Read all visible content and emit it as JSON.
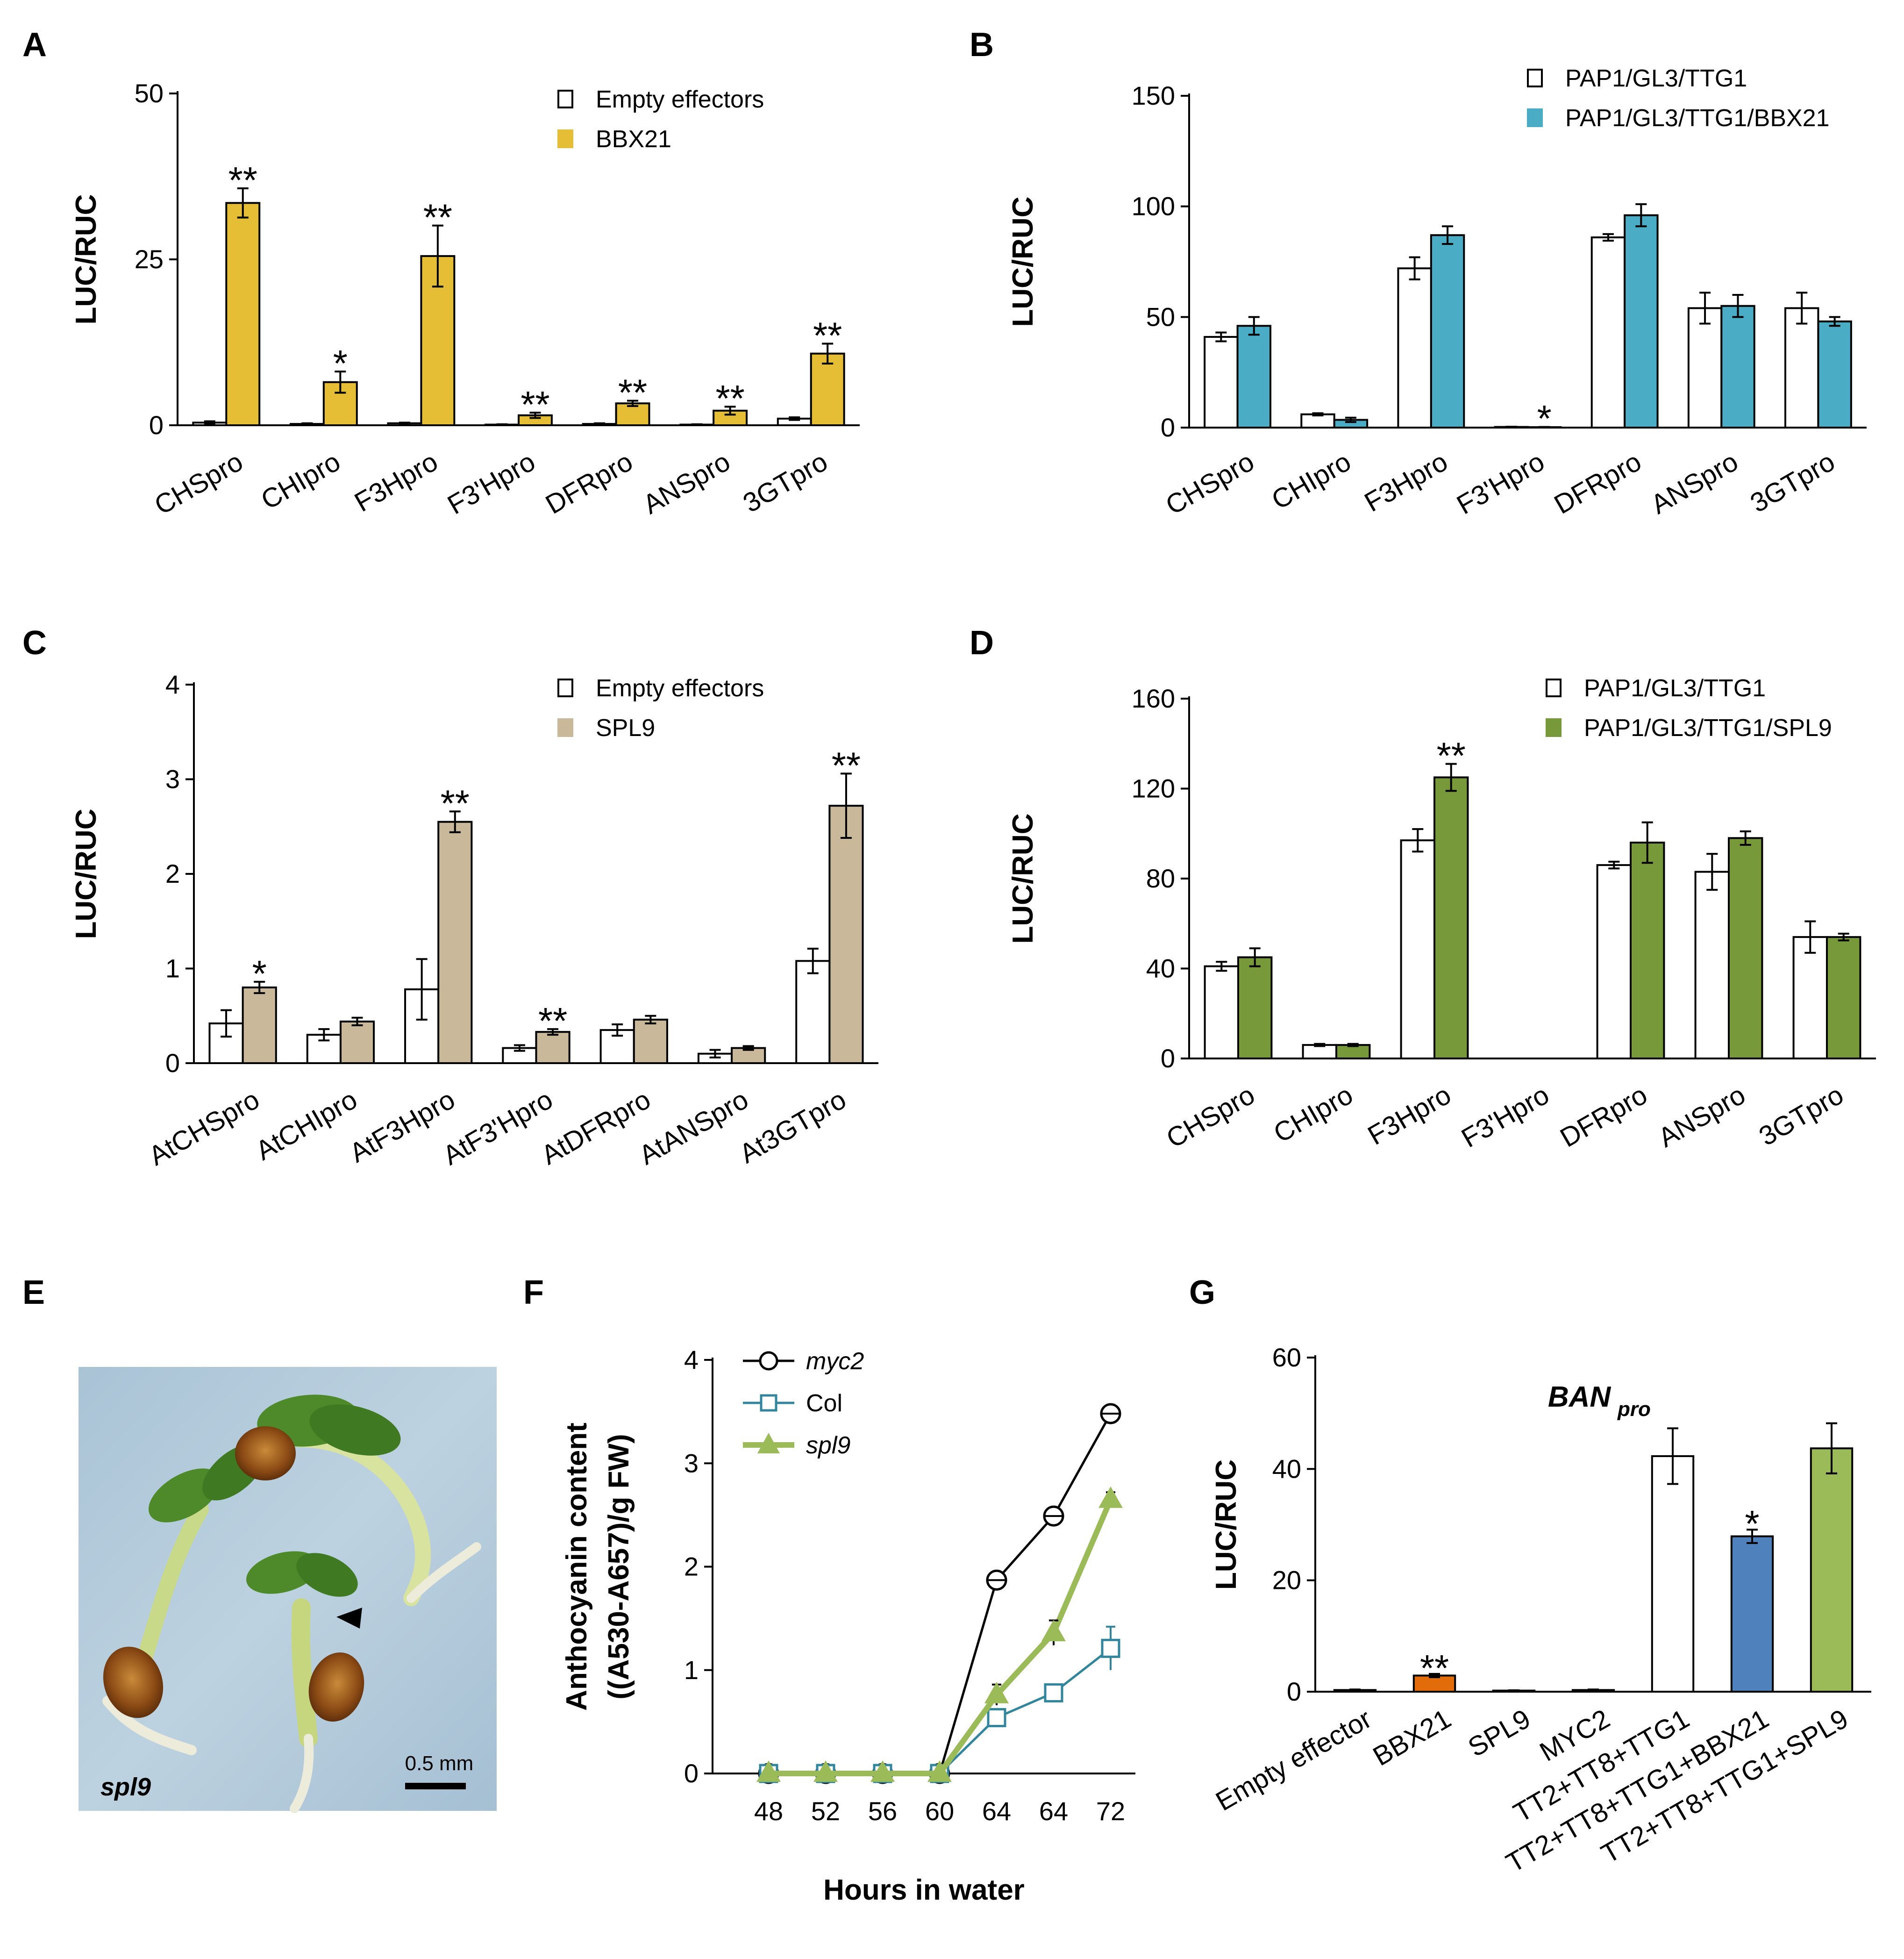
{
  "chart_data": [
    {
      "panel": "A",
      "type": "bar",
      "ylabel": "LUC/RUC",
      "ylim": [
        0,
        50
      ],
      "yticks": [
        0,
        25,
        50
      ],
      "categories": [
        "CHSpro",
        "CHIpro",
        "F3Hpro",
        "F3'Hpro",
        "DFRpro",
        "ANSpro",
        "3GTpro"
      ],
      "series": [
        {
          "name": "Empty  effectors",
          "color": "#ffffff",
          "values": [
            0.4,
            0.2,
            0.3,
            0.1,
            0.2,
            0.1,
            1.0
          ],
          "errors": [
            0.2,
            0.1,
            0.1,
            0.05,
            0.1,
            0.05,
            0.2
          ]
        },
        {
          "name": "BBX21",
          "color": "#E6BE35",
          "values": [
            33.5,
            6.5,
            25.5,
            1.5,
            3.3,
            2.2,
            10.8
          ],
          "errors": [
            2.2,
            1.6,
            4.6,
            0.4,
            0.4,
            0.6,
            1.5
          ]
        }
      ],
      "significance": [
        {
          "index": 0,
          "text": "**"
        },
        {
          "index": 1,
          "text": "*"
        },
        {
          "index": 2,
          "text": "**"
        },
        {
          "index": 3,
          "text": "**"
        },
        {
          "index": 4,
          "text": "**"
        },
        {
          "index": 5,
          "text": "**"
        },
        {
          "index": 6,
          "text": "**"
        }
      ],
      "legend_position": "top-right"
    },
    {
      "panel": "B",
      "type": "bar",
      "ylabel": "LUC/RUC",
      "ylim": [
        0,
        150
      ],
      "yticks": [
        0,
        50,
        100,
        150
      ],
      "categories": [
        "CHSpro",
        "CHIpro",
        "F3Hpro",
        "F3'Hpro",
        "DFRpro",
        "ANSpro",
        "3GTpro"
      ],
      "series": [
        {
          "name": "PAP1/GL3/TTG1",
          "color": "#ffffff",
          "values": [
            41,
            6,
            72,
            0.3,
            86,
            54,
            54
          ],
          "errors": [
            2,
            0.5,
            5,
            0.1,
            1.5,
            7,
            7
          ]
        },
        {
          "name": "PAP1/GL3/TTG1/BBX21",
          "color": "#4BACC6",
          "values": [
            46,
            3.5,
            87,
            0.2,
            96,
            55,
            48
          ],
          "errors": [
            4,
            1,
            4,
            0.1,
            5,
            5,
            2
          ]
        }
      ],
      "significance": [
        {
          "index": 3,
          "text": "*"
        }
      ],
      "legend_position": "top-right"
    },
    {
      "panel": "C",
      "type": "bar",
      "ylabel": "LUC/RUC",
      "ylim": [
        0,
        4
      ],
      "yticks": [
        0,
        1,
        2,
        3,
        4
      ],
      "categories": [
        "AtCHSpro",
        "AtCHIpro",
        "AtF3Hpro",
        "AtF3'Hpro",
        "AtDFRpro",
        "AtANSpro",
        "At3GTpro"
      ],
      "series": [
        {
          "name": "Empty effectors",
          "color": "#ffffff",
          "values": [
            0.42,
            0.3,
            0.78,
            0.16,
            0.35,
            0.1,
            1.08
          ],
          "errors": [
            0.14,
            0.06,
            0.32,
            0.03,
            0.06,
            0.04,
            0.13
          ]
        },
        {
          "name": "SPL9",
          "color": "#C9B99A",
          "values": [
            0.8,
            0.44,
            2.55,
            0.33,
            0.46,
            0.16,
            2.72
          ],
          "errors": [
            0.06,
            0.04,
            0.11,
            0.03,
            0.04,
            0.02,
            0.34
          ]
        }
      ],
      "significance": [
        {
          "index": 0,
          "text": "*"
        },
        {
          "index": 2,
          "text": "**"
        },
        {
          "index": 3,
          "text": "**"
        },
        {
          "index": 6,
          "text": "**"
        }
      ],
      "legend_position": "top-right"
    },
    {
      "panel": "D",
      "type": "bar",
      "ylabel": "LUC/RUC",
      "ylim": [
        0,
        160
      ],
      "yticks": [
        0,
        40,
        80,
        120,
        160
      ],
      "categories": [
        "CHSpro",
        "CHIpro",
        "F3Hpro",
        "F3'Hpro",
        "DFRpro",
        "ANSpro",
        "3GTpro"
      ],
      "series": [
        {
          "name": "PAP1/GL3/TTG1",
          "color": "#ffffff",
          "values": [
            41,
            6,
            97,
            0,
            86,
            83,
            54
          ],
          "errors": [
            2,
            0.5,
            5,
            0,
            1.5,
            8,
            7
          ]
        },
        {
          "name": "PAP1/GL3/TTG1/SPL9",
          "color": "#77993A",
          "values": [
            45,
            6,
            125,
            0,
            96,
            98,
            54
          ],
          "errors": [
            4,
            0.5,
            6,
            0,
            9,
            3,
            1.5
          ]
        }
      ],
      "significance": [
        {
          "index": 2,
          "text": "**"
        }
      ],
      "legend_position": "top-right"
    },
    {
      "panel": "F",
      "type": "line",
      "xlabel": "Hours in water",
      "ylabel_lines": [
        "Anthocyanin content",
        "((A530-A657)/g FW)"
      ],
      "ylim": [
        0,
        4
      ],
      "yticks": [
        0,
        1,
        2,
        3,
        4
      ],
      "x": [
        "48",
        "52",
        "56",
        "60",
        "64",
        "64",
        "72"
      ],
      "series": [
        {
          "name": "myc2",
          "color": "#000000",
          "marker": "circle",
          "values": [
            0,
            0,
            0,
            0,
            1.87,
            2.49,
            3.48
          ],
          "errors": [
            0,
            0,
            0,
            0,
            0.04,
            0.05,
            0.06
          ]
        },
        {
          "name": "Col",
          "color": "#31859C",
          "marker": "square",
          "values": [
            0,
            0,
            0,
            0,
            0.54,
            0.78,
            1.21
          ],
          "errors": [
            0,
            0,
            0,
            0,
            0.06,
            0.04,
            0.21
          ]
        },
        {
          "name": "spl9",
          "color": "#9BBB59",
          "marker": "triangle",
          "values": [
            0,
            0,
            0,
            0,
            0.76,
            1.36,
            2.65
          ],
          "errors": [
            0,
            0,
            0,
            0,
            0.1,
            0.12,
            0.07
          ]
        }
      ],
      "legend_position": "top-left"
    },
    {
      "panel": "G",
      "type": "bar",
      "title": "BAN",
      "title_subscript": "pro",
      "ylabel": "LUC/RUC",
      "ylim": [
        0,
        60
      ],
      "yticks": [
        0,
        20,
        40,
        60
      ],
      "categories": [
        "Empty effector",
        "BBX21",
        "SPL9",
        "MYC2",
        "TT2+TT8+TTG1",
        "TT2+TT8+TTG1+BBX21",
        "TT2+TT8+TTG1+SPL9"
      ],
      "values": [
        0.3,
        2.9,
        0.2,
        0.3,
        42.3,
        27.9,
        43.7
      ],
      "errors": [
        0.1,
        0.3,
        0.05,
        0.1,
        5.0,
        1.2,
        4.5
      ],
      "colors": [
        "#ffffff",
        "#E36C0A",
        "#ffffff",
        "#ffffff",
        "#ffffff",
        "#4F81BD",
        "#9BBB59"
      ],
      "significance": [
        {
          "index": 1,
          "text": "**"
        },
        {
          "index": 5,
          "text": "*"
        }
      ]
    }
  ],
  "panels": {
    "A": {
      "letter": "A"
    },
    "B": {
      "letter": "B"
    },
    "C": {
      "letter": "C"
    },
    "D": {
      "letter": "D"
    },
    "E": {
      "letter": "E",
      "genotype_label": "spl9",
      "scale_bar_label": "0.5 mm"
    },
    "F": {
      "letter": "F"
    },
    "G": {
      "letter": "G"
    }
  }
}
